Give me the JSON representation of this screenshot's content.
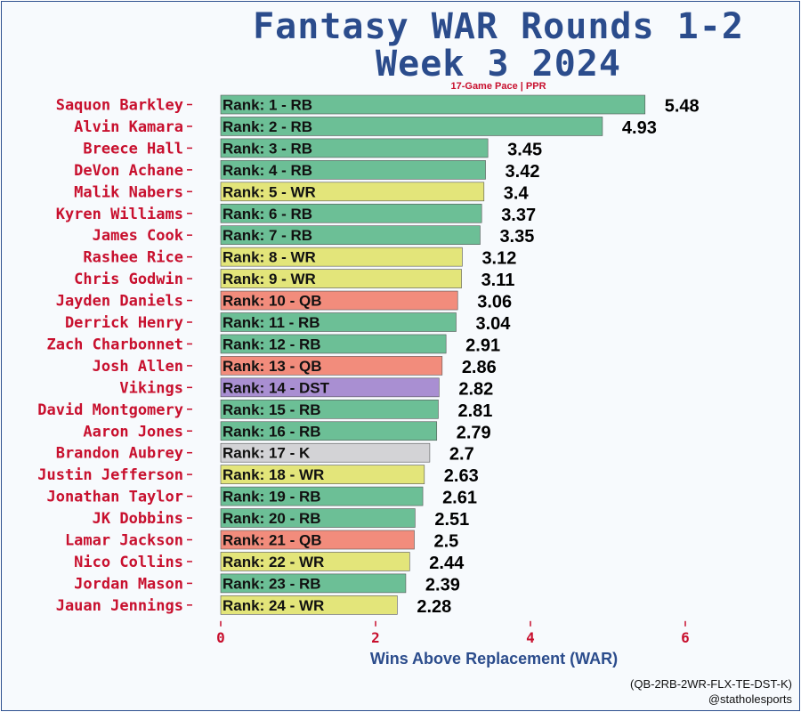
{
  "chart_data": {
    "type": "bar",
    "orientation": "horizontal",
    "title_line1": "Fantasy WAR Rounds 1-2",
    "title_line2": "Week 3 2024",
    "subtitle": "17-Game Pace | PPR",
    "xlabel": "Wins Above Replacement (WAR)",
    "xlim": [
      0,
      6.2
    ],
    "xticks": [
      0,
      2,
      4,
      6
    ],
    "position_colors": {
      "RB": "#6cbf96",
      "WR": "#e3e57a",
      "QB": "#f28c7c",
      "DST": "#a98fd2",
      "K": "#d3d3d6"
    },
    "players": [
      {
        "name": "Saquon Barkley",
        "rank_label": "Rank: 1 - RB",
        "position": "RB",
        "war": 5.48
      },
      {
        "name": "Alvin Kamara",
        "rank_label": "Rank: 2 - RB",
        "position": "RB",
        "war": 4.93
      },
      {
        "name": "Breece Hall",
        "rank_label": "Rank: 3 - RB",
        "position": "RB",
        "war": 3.45
      },
      {
        "name": "DeVon Achane",
        "rank_label": "Rank: 4 - RB",
        "position": "RB",
        "war": 3.42
      },
      {
        "name": "Malik Nabers",
        "rank_label": "Rank: 5 - WR",
        "position": "WR",
        "war": 3.4
      },
      {
        "name": "Kyren Williams",
        "rank_label": "Rank: 6 - RB",
        "position": "RB",
        "war": 3.37
      },
      {
        "name": "James Cook",
        "rank_label": "Rank: 7 - RB",
        "position": "RB",
        "war": 3.35
      },
      {
        "name": "Rashee Rice",
        "rank_label": "Rank: 8 - WR",
        "position": "WR",
        "war": 3.12
      },
      {
        "name": "Chris Godwin",
        "rank_label": "Rank: 9 - WR",
        "position": "WR",
        "war": 3.11
      },
      {
        "name": "Jayden Daniels",
        "rank_label": "Rank: 10 - QB",
        "position": "QB",
        "war": 3.06
      },
      {
        "name": "Derrick Henry",
        "rank_label": "Rank: 11 - RB",
        "position": "RB",
        "war": 3.04
      },
      {
        "name": "Zach Charbonnet",
        "rank_label": "Rank: 12 - RB",
        "position": "RB",
        "war": 2.91
      },
      {
        "name": "Josh Allen",
        "rank_label": "Rank: 13 - QB",
        "position": "QB",
        "war": 2.86
      },
      {
        "name": "Vikings",
        "rank_label": "Rank: 14 - DST",
        "position": "DST",
        "war": 2.82
      },
      {
        "name": "David Montgomery",
        "rank_label": "Rank: 15 - RB",
        "position": "RB",
        "war": 2.81
      },
      {
        "name": "Aaron Jones",
        "rank_label": "Rank: 16 - RB",
        "position": "RB",
        "war": 2.79
      },
      {
        "name": "Brandon Aubrey",
        "rank_label": "Rank: 17 - K",
        "position": "K",
        "war": 2.7
      },
      {
        "name": "Justin Jefferson",
        "rank_label": "Rank: 18 - WR",
        "position": "WR",
        "war": 2.63
      },
      {
        "name": "Jonathan Taylor",
        "rank_label": "Rank: 19 - RB",
        "position": "RB",
        "war": 2.61
      },
      {
        "name": "JK Dobbins",
        "rank_label": "Rank: 20 - RB",
        "position": "RB",
        "war": 2.51
      },
      {
        "name": "Lamar Jackson",
        "rank_label": "Rank: 21 - QB",
        "position": "QB",
        "war": 2.5
      },
      {
        "name": "Nico Collins",
        "rank_label": "Rank: 22 - WR",
        "position": "WR",
        "war": 2.44
      },
      {
        "name": "Jordan Mason",
        "rank_label": "Rank: 23 - RB",
        "position": "RB",
        "war": 2.39
      },
      {
        "name": "Jauan Jennings",
        "rank_label": "Rank: 24 - WR",
        "position": "WR",
        "war": 2.28
      }
    ]
  },
  "footer": {
    "format": "(QB-2RB-2WR-FLX-TE-DST-K)",
    "handle": "@statholesports"
  }
}
